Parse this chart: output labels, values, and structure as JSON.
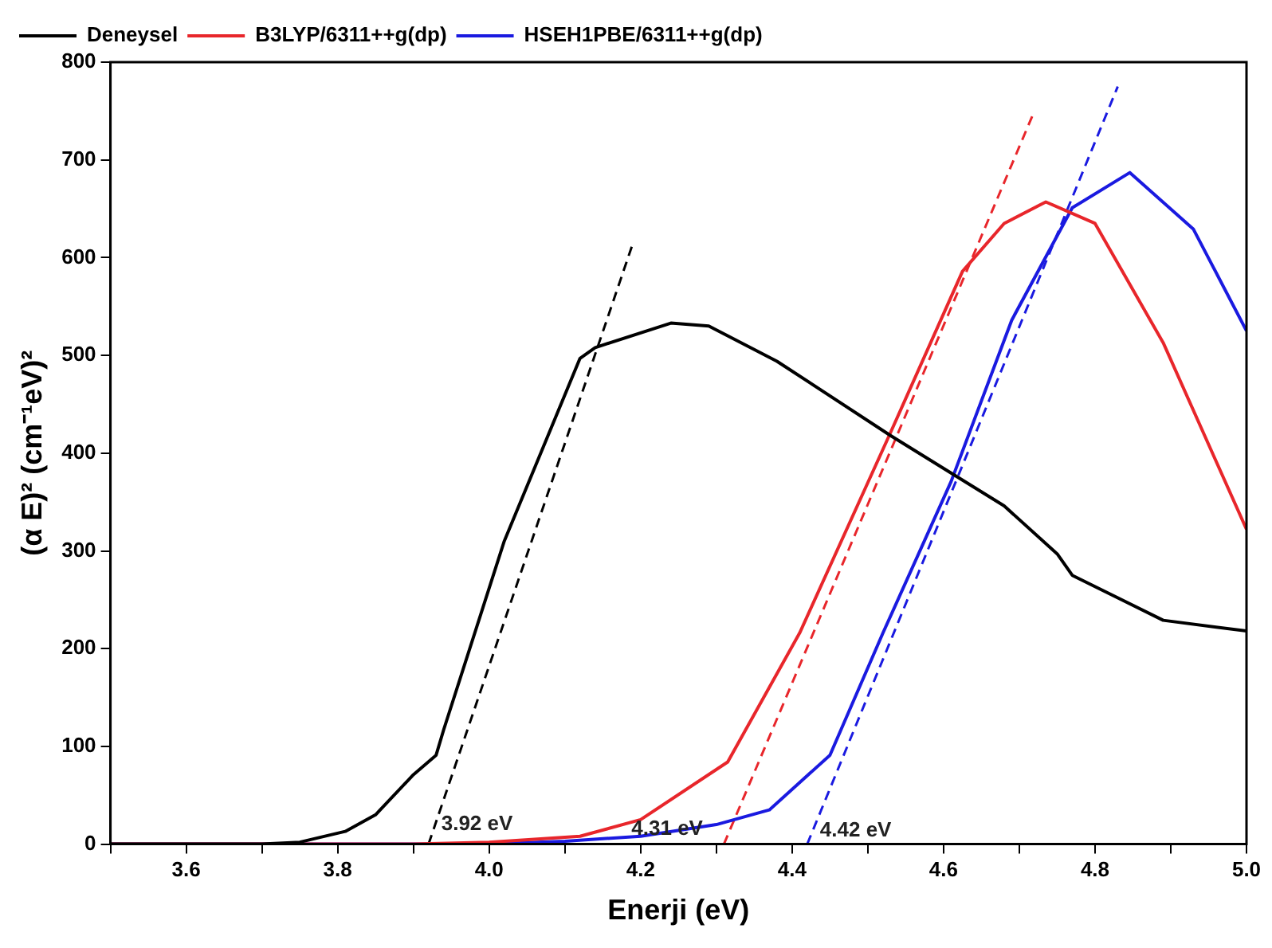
{
  "chart_data": {
    "type": "line",
    "xlabel": "Enerji (eV)",
    "ylabel": "(α E)² (cm⁻¹eV)²",
    "xlim": [
      3.5,
      5.0
    ],
    "ylim": [
      0,
      800
    ],
    "xticks": [
      {
        "value": 3.5,
        "label": null
      },
      3.6,
      {
        "value": 3.7,
        "label": null
      },
      3.8,
      {
        "value": 3.9,
        "label": null
      },
      {
        "value": 4.0,
        "label": "4.0"
      },
      {
        "value": 4.1,
        "label": null
      },
      4.2,
      {
        "value": 4.3,
        "label": null
      },
      4.4,
      {
        "value": 4.5,
        "label": null
      },
      4.6,
      {
        "value": 4.7,
        "label": null
      },
      4.8,
      {
        "value": 4.9,
        "label": null
      },
      {
        "value": 5.0,
        "label": "5.0"
      }
    ],
    "yticks": [
      0,
      100,
      200,
      300,
      400,
      500,
      600,
      700,
      800
    ],
    "grid": false,
    "legend": "top left",
    "marker": "none",
    "line_style": "solid",
    "series": [
      {
        "name": "Deneysel",
        "color": "#000000",
        "x": [
          3.5,
          3.7,
          3.75,
          3.81,
          3.85,
          3.9,
          3.93,
          3.94,
          4.02,
          4.12,
          4.14,
          4.24,
          4.29,
          4.38,
          4.53,
          4.68,
          4.75,
          4.77,
          4.89,
          5.0
        ],
        "values": [
          0,
          0,
          2,
          13,
          30,
          71,
          91,
          117,
          310,
          497,
          508,
          533,
          530,
          494,
          418,
          346,
          297,
          275,
          229,
          218
        ]
      },
      {
        "name": "B3LYP/6311++g(dp)",
        "color": "#e8262b",
        "x": [
          3.5,
          3.9,
          4.0,
          4.12,
          4.2,
          4.315,
          4.41,
          4.53,
          4.625,
          4.68,
          4.735,
          4.8,
          4.89,
          5.0
        ],
        "values": [
          0,
          0,
          2,
          8,
          25,
          84,
          216,
          421,
          586,
          635,
          657,
          635,
          513,
          322
        ]
      },
      {
        "name": "HSEH1PBE/6311++g(dp)",
        "color": "#1a1ae0",
        "x": [
          3.5,
          4.0,
          4.1,
          4.2,
          4.3,
          4.37,
          4.45,
          4.52,
          4.61,
          4.69,
          4.77,
          4.846,
          4.93,
          5.0
        ],
        "values": [
          0,
          0,
          3,
          8,
          20,
          35,
          91,
          216,
          371,
          536,
          651,
          687,
          629,
          525
        ]
      },
      {
        "type": "line",
        "line_style": "dashed",
        "color": "#000000",
        "x": [
          3.92,
          4.19
        ],
        "values": [
          0,
          615
        ]
      },
      {
        "type": "line",
        "line_style": "dashed",
        "color": "#e8262b",
        "x": [
          4.31,
          4.72
        ],
        "values": [
          0,
          750
        ]
      },
      {
        "type": "line",
        "line_style": "dashed",
        "color": "#1a1ae0",
        "x": [
          4.42,
          4.83
        ],
        "values": [
          0,
          775
        ]
      }
    ],
    "annotations": [
      {
        "text": "3.92 eV",
        "x": 3.92,
        "y": 0
      },
      {
        "text": "4.31 eV",
        "x": 4.31,
        "y": 0
      },
      {
        "text": "4.42 eV",
        "x": 4.42,
        "y": 0
      }
    ]
  }
}
